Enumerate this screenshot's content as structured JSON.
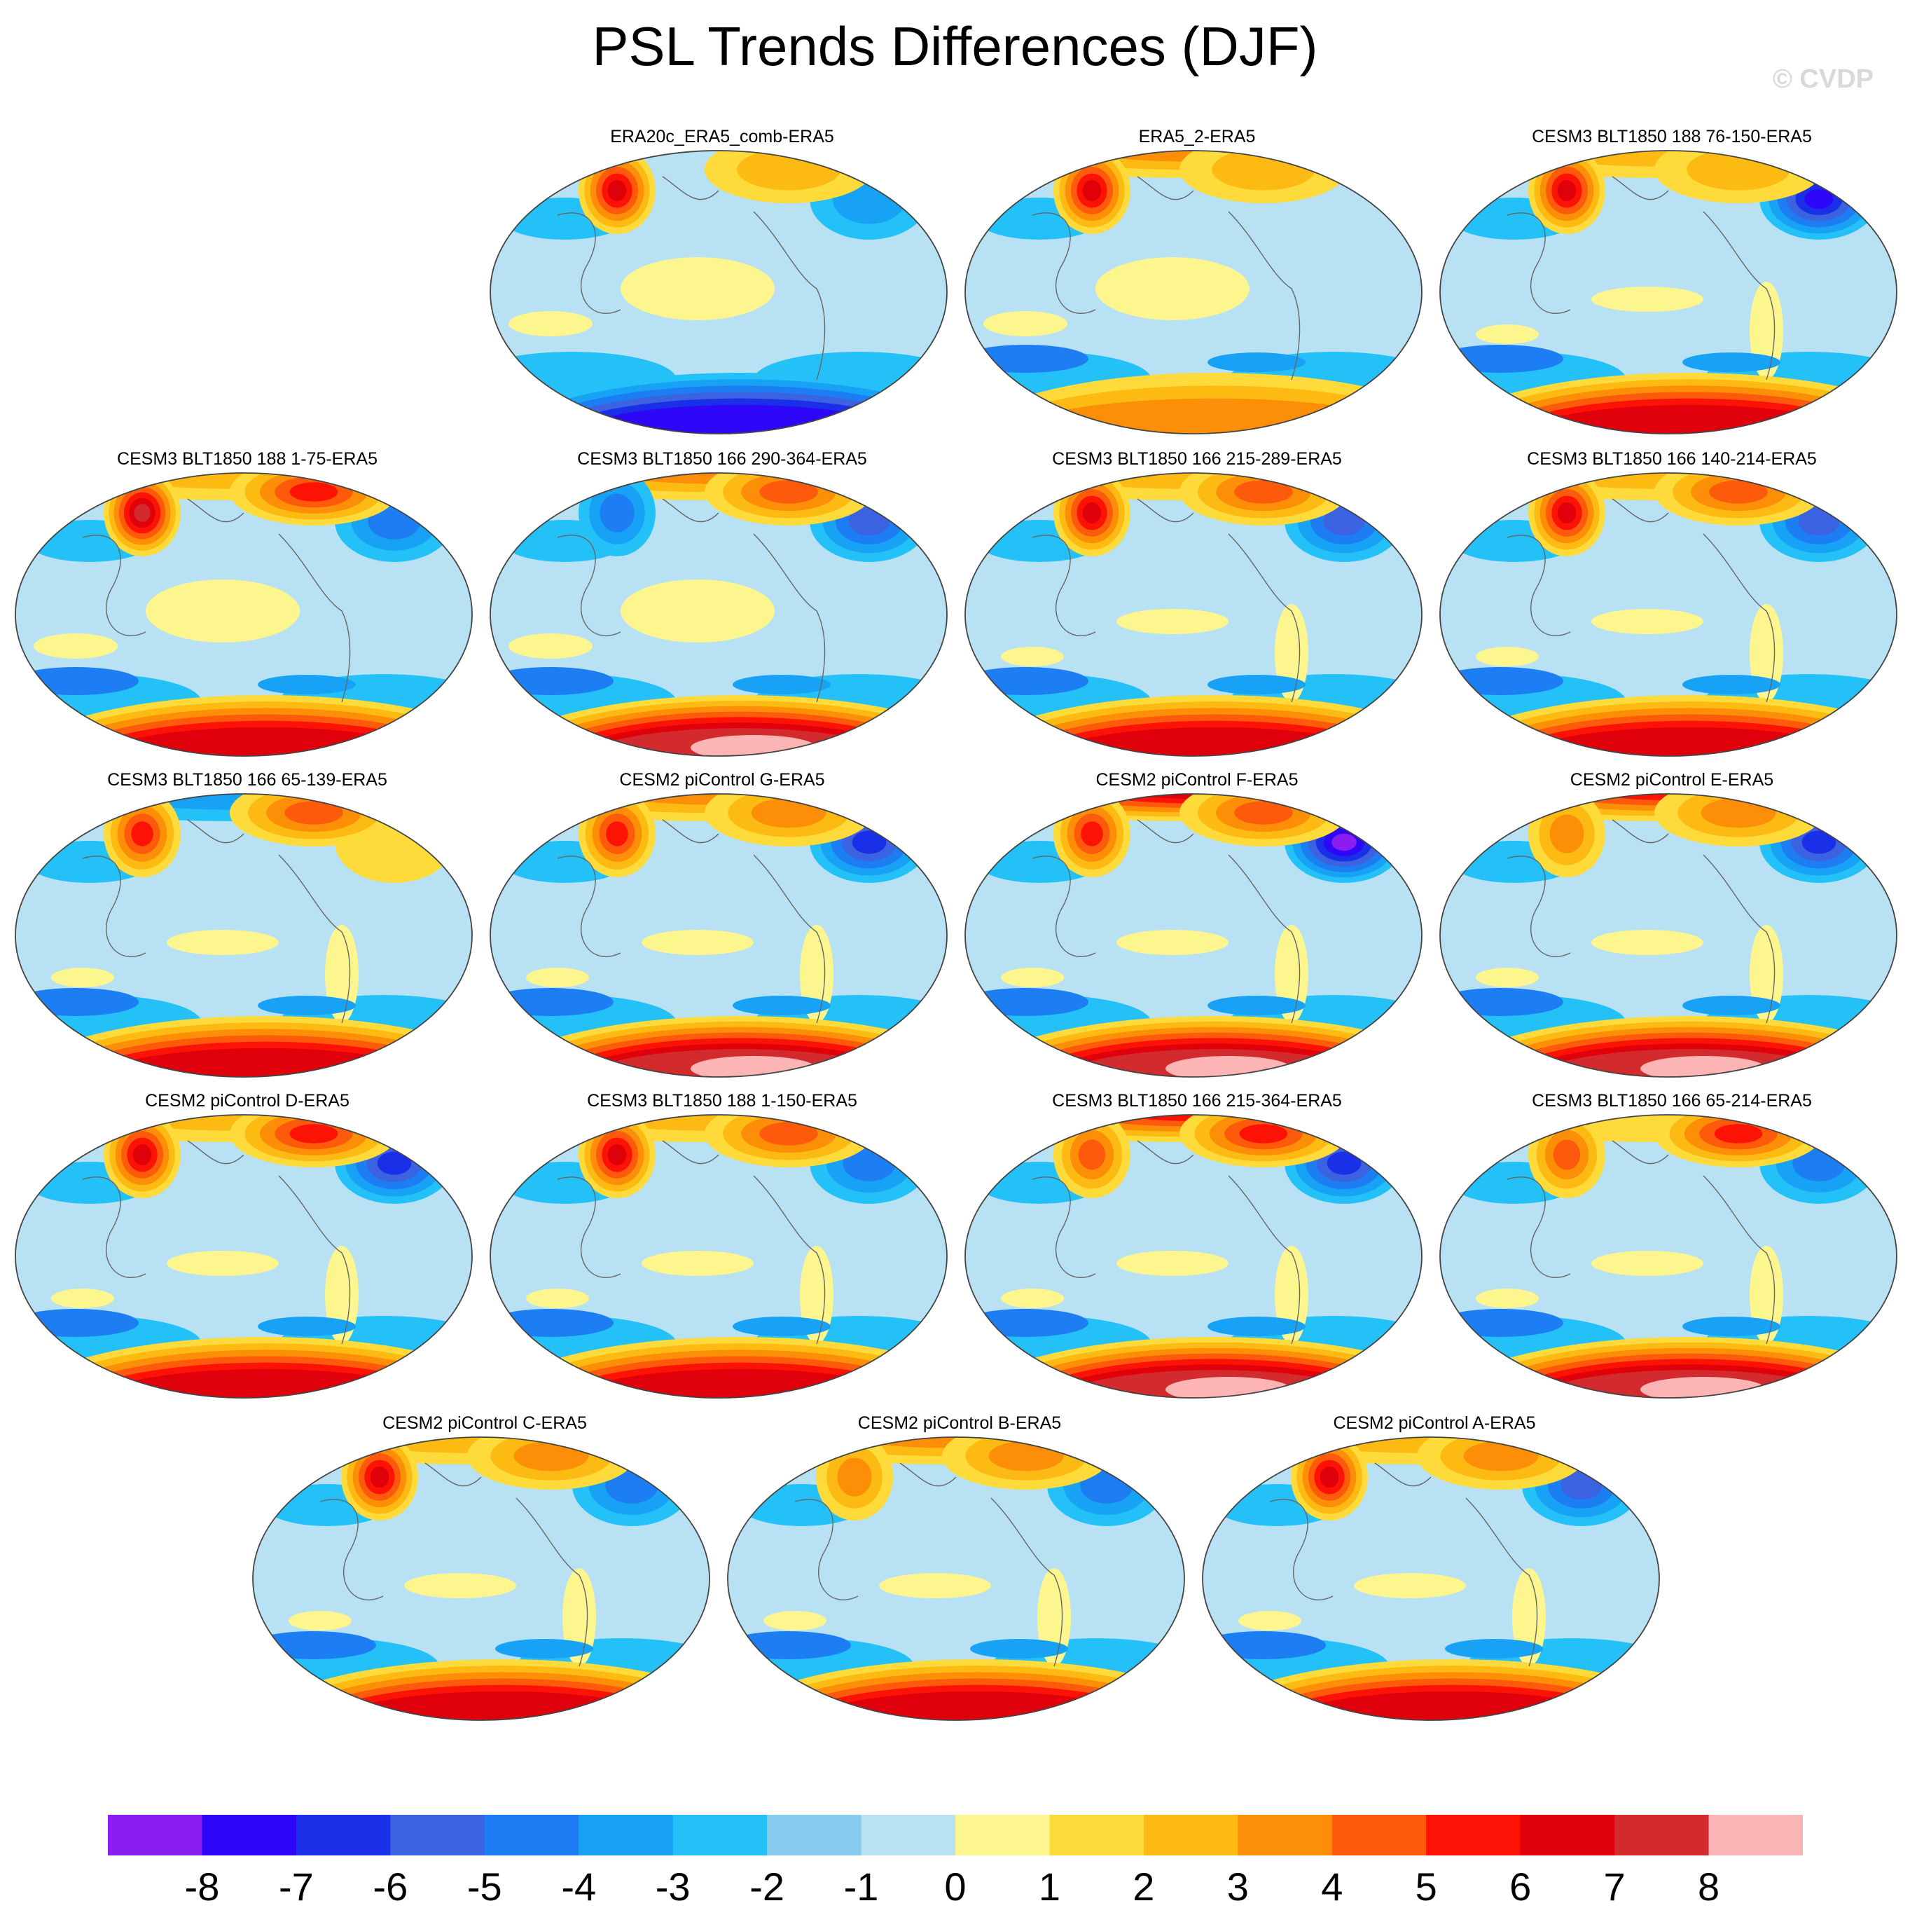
{
  "title": "PSL Trends Differences (DJF)",
  "watermark": "© CVDP",
  "panels": [
    {
      "title": "ERA20c_ERA5_comb-ERA5",
      "row": 0,
      "col": 1,
      "nh": [
        0,
        6,
        -2,
        2
      ],
      "sh": -6,
      "tropics": 1
    },
    {
      "title": "ERA5_2-ERA5",
      "row": 0,
      "col": 2,
      "nh": [
        3,
        6,
        0,
        2
      ],
      "sh": 3,
      "tropics": 1
    },
    {
      "title": "CESM3 BLT1850 188 76-150-ERA5",
      "row": 0,
      "col": 3,
      "nh": [
        2,
        6,
        -6,
        2
      ],
      "sh": 6,
      "tropics": -1
    },
    {
      "title": "CESM3 BLT1850 188 1-75-ERA5",
      "row": 1,
      "col": 0,
      "nh": [
        2,
        7,
        -3,
        5
      ],
      "sh": 6,
      "tropics": 1
    },
    {
      "title": "CESM3 BLT1850 166 290-364-ERA5",
      "row": 1,
      "col": 1,
      "nh": [
        3,
        -3,
        -4,
        4
      ],
      "sh": 7,
      "tropics": 1
    },
    {
      "title": "CESM3 BLT1850 166 215-289-ERA5",
      "row": 1,
      "col": 2,
      "nh": [
        2,
        6,
        -4,
        4
      ],
      "sh": 6,
      "tropics": -1
    },
    {
      "title": "CESM3 BLT1850 166 140-214-ERA5",
      "row": 1,
      "col": 3,
      "nh": [
        2,
        6,
        -4,
        4
      ],
      "sh": 6,
      "tropics": -1
    },
    {
      "title": "CESM3 BLT1850 166 65-139-ERA5",
      "row": 2,
      "col": 0,
      "nh": [
        -2,
        5,
        1,
        4
      ],
      "sh": 6,
      "tropics": -1
    },
    {
      "title": "CESM2 piControl G-ERA5",
      "row": 2,
      "col": 1,
      "nh": [
        3,
        5,
        -5,
        3
      ],
      "sh": 7,
      "tropics": -1
    },
    {
      "title": "CESM2 piControl F-ERA5",
      "row": 2,
      "col": 2,
      "nh": [
        6,
        5,
        -7,
        4
      ],
      "sh": 7,
      "tropics": -1
    },
    {
      "title": "CESM2 piControl E-ERA5",
      "row": 2,
      "col": 3,
      "nh": [
        5,
        3,
        -5,
        3
      ],
      "sh": 7,
      "tropics": -1
    },
    {
      "title": "CESM2 piControl D-ERA5",
      "row": 3,
      "col": 0,
      "nh": [
        2,
        6,
        -5,
        5
      ],
      "sh": 6,
      "tropics": -1
    },
    {
      "title": "CESM3 BLT1850 188 1-150-ERA5",
      "row": 3,
      "col": 1,
      "nh": [
        2,
        6,
        -3,
        4
      ],
      "sh": 6,
      "tropics": -1
    },
    {
      "title": "CESM3 BLT1850 166 215-364-ERA5",
      "row": 3,
      "col": 2,
      "nh": [
        5,
        4,
        -5,
        5
      ],
      "sh": 7,
      "tropics": -1
    },
    {
      "title": "CESM3 BLT1850 166 65-214-ERA5",
      "row": 3,
      "col": 3,
      "nh": [
        1,
        4,
        -3,
        5
      ],
      "sh": 7,
      "tropics": -1
    },
    {
      "title": "CESM2 piControl C-ERA5",
      "row": 4,
      "col": 0.5,
      "nh": [
        2,
        6,
        -3,
        3
      ],
      "sh": 6,
      "tropics": -1
    },
    {
      "title": "CESM2 piControl B-ERA5",
      "row": 4,
      "col": 1.5,
      "nh": [
        3,
        3,
        -3,
        3
      ],
      "sh": 6,
      "tropics": -1
    },
    {
      "title": "CESM2 piControl A-ERA5",
      "row": 4,
      "col": 2.5,
      "nh": [
        2,
        6,
        -4,
        3
      ],
      "sh": 6,
      "tropics": -1
    }
  ],
  "colorbar": {
    "labels": [
      "-8",
      "-7",
      "-6",
      "-5",
      "-4",
      "-3",
      "-2",
      "-1",
      "0",
      "1",
      "2",
      "3",
      "4",
      "5",
      "6",
      "7",
      "8"
    ],
    "colors": [
      "#8a1ef0",
      "#2e06f8",
      "#1a2fe8",
      "#3b62e0",
      "#1c7ef2",
      "#17a2f5",
      "#23c1f7",
      "#87cbef",
      "#b9e1f4",
      "#fdf68f",
      "#fedb3b",
      "#fdba12",
      "#fd8e08",
      "#fd5a0b",
      "#fd1206",
      "#e0000b",
      "#d22a2d",
      "#fdb4b4"
    ]
  }
}
